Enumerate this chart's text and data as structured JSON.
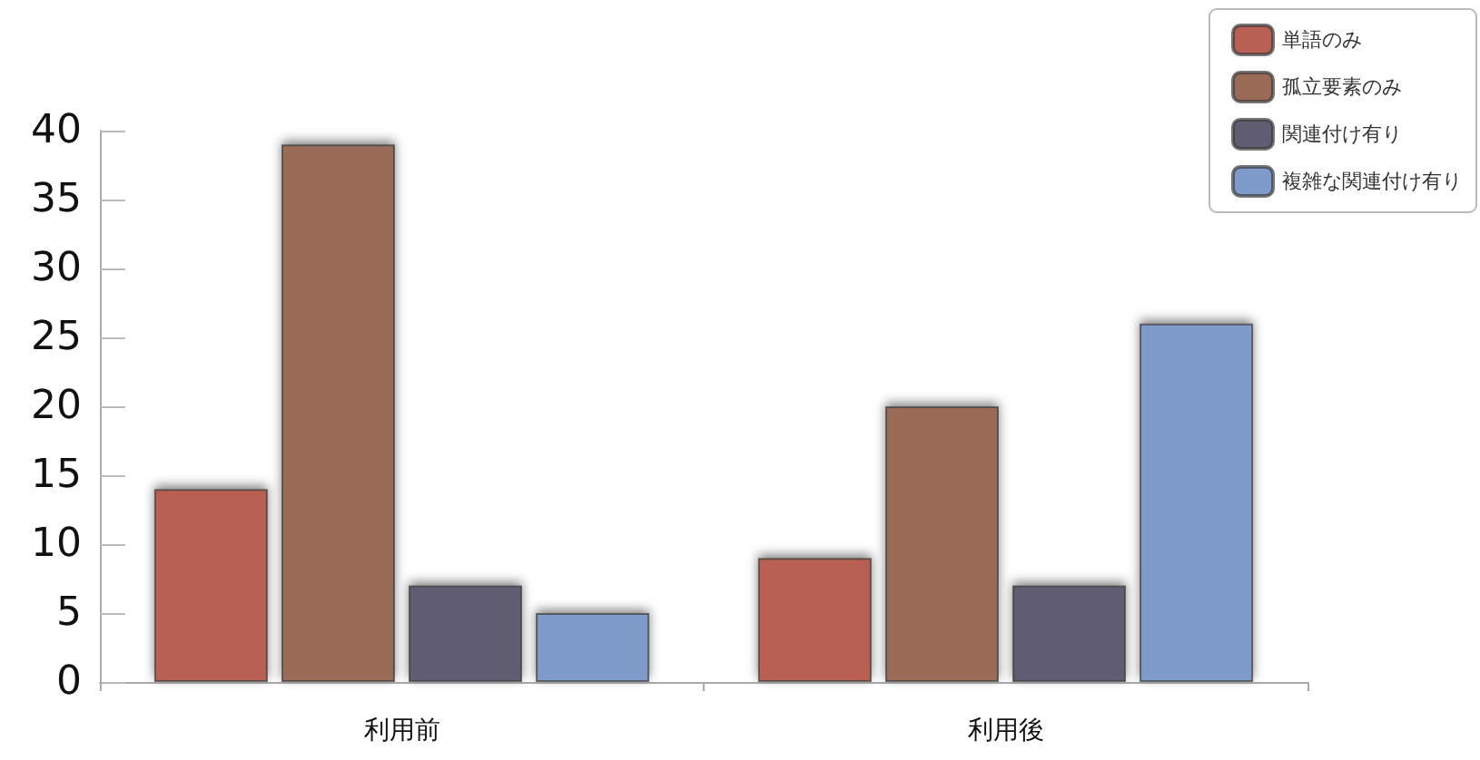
{
  "chart_data": {
    "type": "bar",
    "categories": [
      "利用前",
      "利用後"
    ],
    "series": [
      {
        "name": "単語のみ",
        "color": "#b95f53",
        "values": [
          14,
          9
        ]
      },
      {
        "name": "孤立要素のみ",
        "color": "#9a6c58",
        "values": [
          39,
          20
        ]
      },
      {
        "name": "関連付け有り",
        "color": "#605d72",
        "values": [
          7,
          7
        ]
      },
      {
        "name": "複雑な関連付け有り",
        "color": "#7e9bca",
        "values": [
          5,
          26
        ]
      }
    ],
    "ylim": [
      0,
      40
    ],
    "yticks": [
      0,
      5,
      10,
      15,
      20,
      25,
      30,
      35,
      40
    ],
    "grid": false,
    "legend": "top right"
  }
}
